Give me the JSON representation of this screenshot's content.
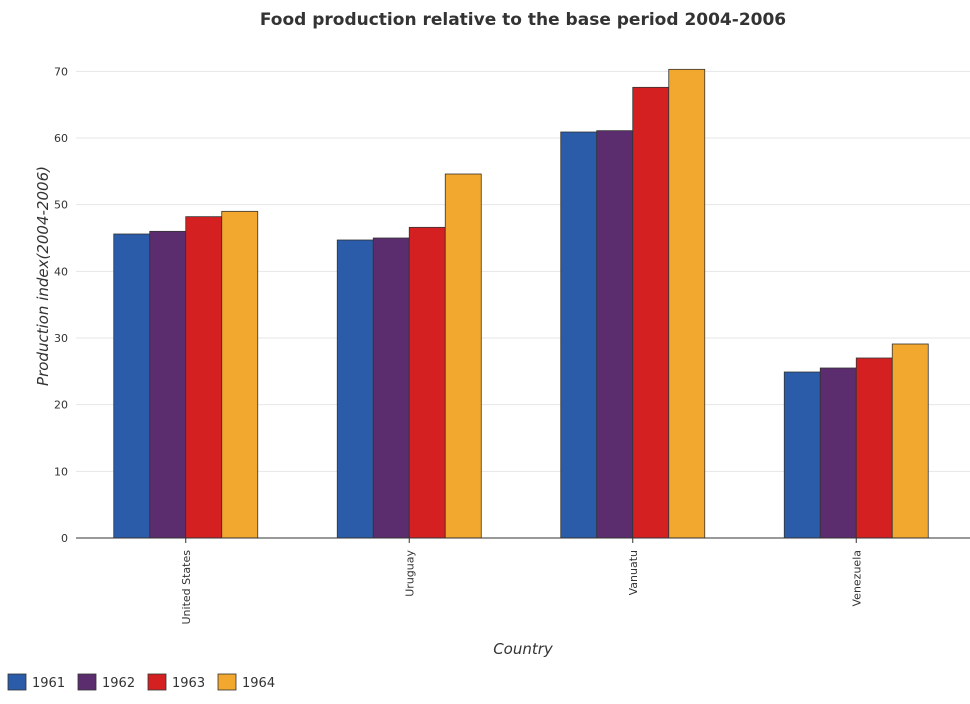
{
  "chart_data": {
    "type": "bar",
    "title": "Food production relative to the base period 2004-2006",
    "xlabel": "Country",
    "ylabel": "Production index(2004-2006)",
    "categories": [
      "United States",
      "Uruguay",
      "Vanuatu",
      "Venezuela"
    ],
    "ylim": [
      0,
      75
    ],
    "yticks": [
      0,
      10,
      20,
      30,
      40,
      50,
      60,
      70
    ],
    "grid": true,
    "legend_position": "bottom-left",
    "series": [
      {
        "name": "1961",
        "color": "#2a5caa",
        "values": [
          45.6,
          44.7,
          60.9,
          24.9
        ]
      },
      {
        "name": "1962",
        "color": "#5c2d6e",
        "values": [
          46.0,
          45.0,
          61.1,
          25.5
        ]
      },
      {
        "name": "1963",
        "color": "#d42020",
        "values": [
          48.2,
          46.6,
          67.6,
          27.0
        ]
      },
      {
        "name": "1964",
        "color": "#f2a72e",
        "values": [
          49.0,
          54.6,
          70.3,
          29.1
        ]
      }
    ]
  }
}
